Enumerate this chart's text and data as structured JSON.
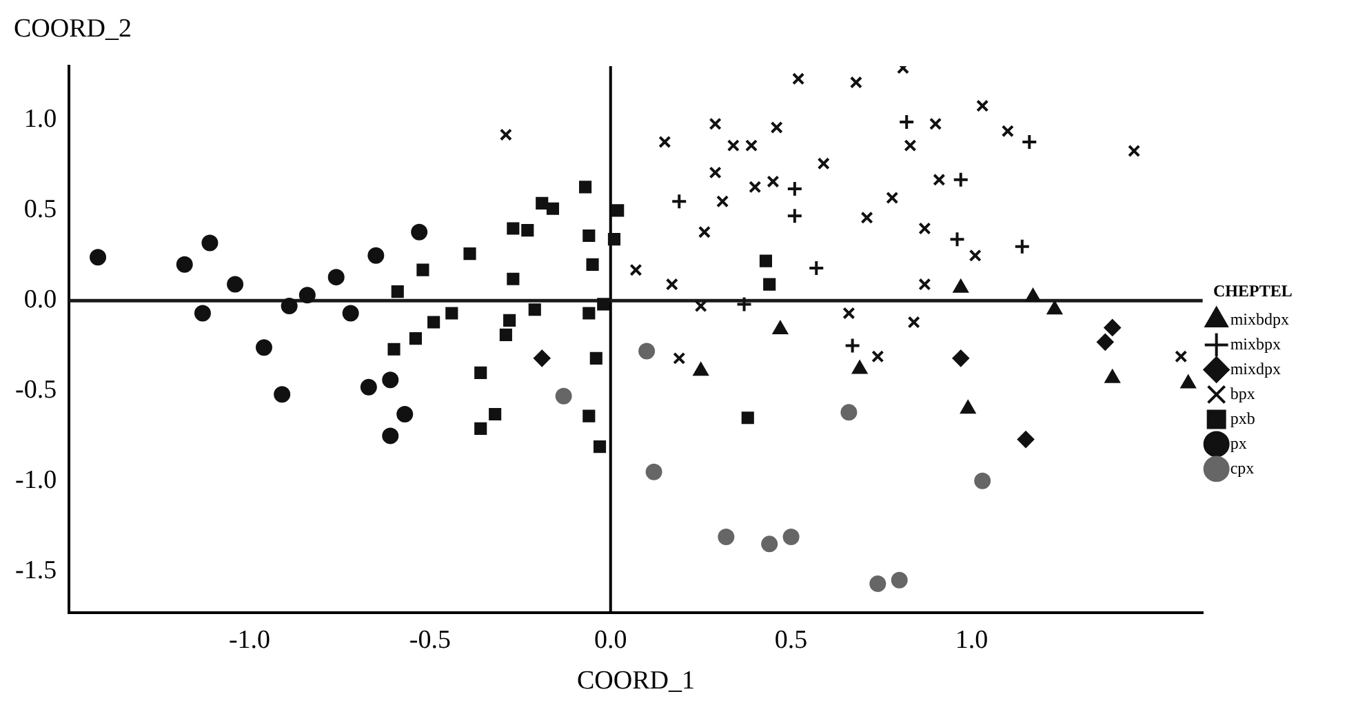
{
  "chart_data": {
    "type": "scatter",
    "xlabel": "COORD_1",
    "ylabel": "COORD_2",
    "legend_title": "CHEPTEL",
    "legend": "right",
    "grid": false,
    "xlim": [
      -1.5,
      1.64
    ],
    "ylim": [
      -1.73,
      1.3
    ],
    "xticks": [
      {
        "value": -1,
        "label": "-1.0"
      },
      {
        "value": -0.5,
        "label": "-0.5"
      },
      {
        "value": 0,
        "label": "0.0"
      },
      {
        "value": 0.5,
        "label": "0.5"
      },
      {
        "value": 1,
        "label": "1.0"
      }
    ],
    "yticks": [
      {
        "value": -1.5,
        "label": "-1.5"
      },
      {
        "value": -1,
        "label": "-1.0"
      },
      {
        "value": -0.5,
        "label": "-0.5"
      },
      {
        "value": 0,
        "label": "0.0"
      },
      {
        "value": 0.5,
        "label": "0.5"
      },
      {
        "value": 1,
        "label": "1.0"
      }
    ],
    "ref_lines": [
      {
        "axis": "x",
        "value": 0,
        "color": "#000000"
      },
      {
        "axis": "y",
        "value": 0,
        "color": "#1a1a1a"
      }
    ],
    "series": [
      {
        "name": "mixbdpx",
        "color": "#111111",
        "marker": "triangle",
        "x": [
          0.47,
          0.97,
          1.17,
          1.23,
          1.6,
          1.39,
          0.25,
          0.69,
          0.99
        ],
        "values": [
          -0.16,
          0.07,
          0.02,
          -0.05,
          -0.46,
          -0.43,
          -0.39,
          -0.38,
          -0.6
        ]
      },
      {
        "name": "mixbpx",
        "color": "#111111",
        "marker": "cross",
        "x": [
          0.82,
          0.19,
          0.51,
          0.51,
          0.57,
          0.37,
          1.16,
          0.97,
          0.96,
          1.14,
          0.67
        ],
        "values": [
          0.99,
          0.55,
          0.62,
          0.47,
          0.18,
          -0.02,
          0.88,
          0.67,
          0.34,
          0.3,
          -0.25
        ]
      },
      {
        "name": "mixdpx",
        "color": "#111111",
        "marker": "diamond",
        "x": [
          -0.19,
          1.39,
          1.37,
          0.97,
          1.15
        ],
        "values": [
          -0.32,
          -0.15,
          -0.23,
          -0.32,
          -0.77
        ]
      },
      {
        "name": "bpx",
        "color": "#111111",
        "x": [
          -0.29,
          0.52,
          0.68,
          0.81,
          0.29,
          0.46,
          0.15,
          0.34,
          0.39,
          0.59,
          0.83,
          0.29,
          0.31,
          0.4,
          0.45,
          0.78,
          0.71,
          0.26,
          0.07,
          0.17,
          0.25,
          0.66,
          0.84,
          0.9,
          1.03,
          1.1,
          1.45,
          0.91,
          0.87,
          1.01,
          0.87,
          1.58,
          0.19,
          0.74
        ],
        "values": [
          0.92,
          1.23,
          1.21,
          1.29,
          0.98,
          0.96,
          0.88,
          0.86,
          0.86,
          0.76,
          0.86,
          0.71,
          0.55,
          0.63,
          0.66,
          0.57,
          0.46,
          0.38,
          0.17,
          0.09,
          -0.03,
          -0.07,
          -0.12,
          0.98,
          1.08,
          0.94,
          0.83,
          0.67,
          0.4,
          0.25,
          0.09,
          -0.31,
          -0.32,
          -0.31
        ]
      },
      {
        "name": "pxb",
        "color": "#111111",
        "marker": "square",
        "x": [
          -0.49,
          -0.07,
          -0.19,
          -0.16,
          -0.27,
          -0.23,
          -0.39,
          -0.52,
          -0.59,
          -0.27,
          -0.06,
          -0.05,
          -0.44,
          -0.54,
          -0.6,
          -0.28,
          -0.29,
          -0.21,
          -0.36,
          -0.32,
          -0.36,
          -0.06,
          -0.02,
          -0.04,
          -0.06,
          -0.03,
          0.02,
          0.01,
          0.43,
          0.44,
          0.38
        ],
        "values": [
          -0.12,
          0.63,
          0.54,
          0.51,
          0.4,
          0.39,
          0.26,
          0.17,
          0.05,
          0.12,
          0.36,
          0.2,
          -0.07,
          -0.21,
          -0.27,
          -0.11,
          -0.19,
          -0.05,
          -0.4,
          -0.63,
          -0.71,
          -0.07,
          -0.02,
          -0.32,
          -0.64,
          -0.81,
          0.5,
          0.34,
          0.22,
          0.09,
          -0.65
        ]
      },
      {
        "name": "px",
        "color": "#111111",
        "marker": "circle",
        "x": [
          -1.42,
          -1.18,
          -1.11,
          -1.04,
          -1.13,
          -0.89,
          -0.84,
          -0.76,
          -0.72,
          -0.65,
          -0.96,
          -0.91,
          -0.61,
          -0.67,
          -0.57,
          -0.61,
          -0.53
        ],
        "values": [
          0.24,
          0.2,
          0.32,
          0.09,
          -0.07,
          -0.03,
          0.03,
          0.13,
          -0.07,
          0.25,
          -0.26,
          -0.52,
          -0.44,
          -0.48,
          -0.63,
          -0.75,
          0.38
        ]
      },
      {
        "name": "cpx",
        "color": "#666666",
        "marker": "circle",
        "x": [
          0.1,
          0.12,
          -0.13,
          0.66,
          1.03,
          0.32,
          0.44,
          0.5,
          0.74,
          0.8
        ],
        "values": [
          -0.28,
          -0.95,
          -0.53,
          -0.62,
          -1.0,
          -1.31,
          -1.35,
          -1.31,
          -1.57,
          -1.55
        ]
      }
    ]
  }
}
